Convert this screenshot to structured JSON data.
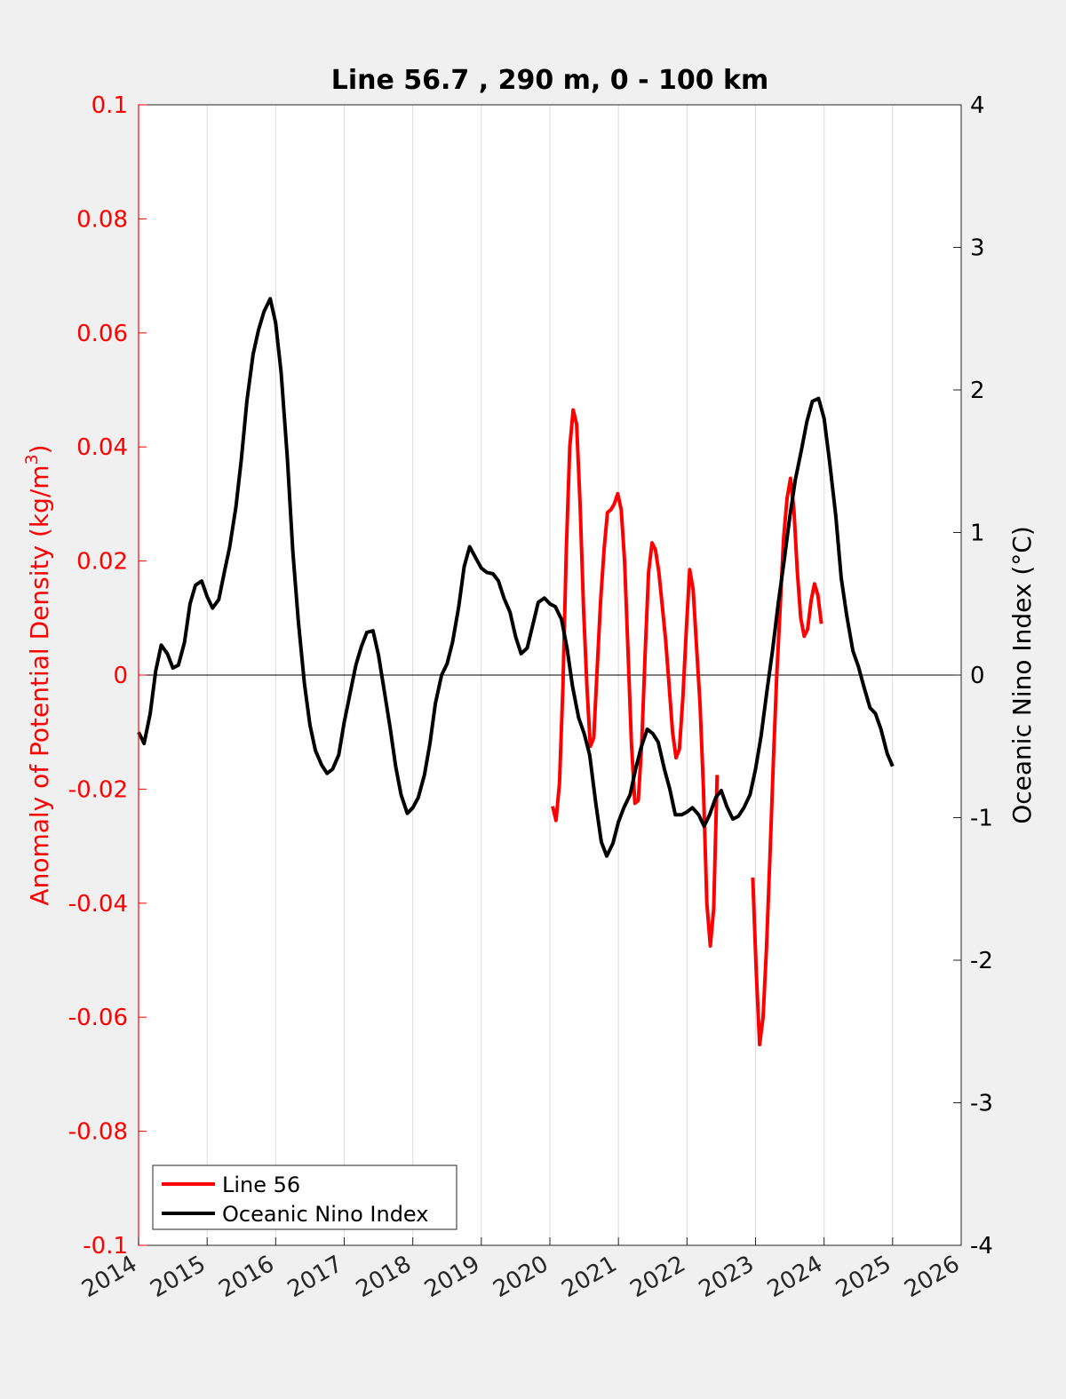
{
  "chart_data": {
    "type": "line",
    "title": "Line 56.7 , 290 m, 0 - 100 km",
    "xlim": [
      2014,
      2026
    ],
    "x_ticks": [
      "2014",
      "2015",
      "2016",
      "2017",
      "2018",
      "2019",
      "2020",
      "2021",
      "2022",
      "2023",
      "2024",
      "2025",
      "2026"
    ],
    "grid": "vertical",
    "left_axis": {
      "ylabel": "Anomaly of Potential Density (kg/m",
      "ylabel_sup": "3",
      "ylabel_suffix": ")",
      "ylim": [
        -0.1,
        0.1
      ],
      "ticks": [
        "-0.1",
        "-0.08",
        "-0.06",
        "-0.04",
        "-0.02",
        "0",
        "0.02",
        "0.04",
        "0.06",
        "0.08",
        "0.1"
      ],
      "color": "#ff0000"
    },
    "right_axis": {
      "ylabel": "Oceanic Nino Index (°C)",
      "ylim": [
        -4,
        4
      ],
      "ticks": [
        "-4",
        "-3",
        "-2",
        "-1",
        "0",
        "1",
        "2",
        "3",
        "4"
      ],
      "color": "#000000"
    },
    "legend": {
      "position": "bottom-left"
    },
    "series": [
      {
        "name": "Line 56",
        "axis": "left",
        "color": "#ff0000",
        "segments": [
          [
            [
              2020.04,
              -0.023
            ],
            [
              2020.09,
              -0.0255
            ],
            [
              2020.14,
              -0.019
            ],
            [
              2020.19,
              -0.002
            ],
            [
              2020.24,
              0.022
            ],
            [
              2020.29,
              0.04
            ],
            [
              2020.34,
              0.0465
            ],
            [
              2020.39,
              0.044
            ],
            [
              2020.44,
              0.03
            ],
            [
              2020.49,
              0.012
            ],
            [
              2020.54,
              -0.002
            ],
            [
              2020.59,
              -0.0125
            ],
            [
              2020.64,
              -0.011
            ],
            [
              2020.69,
              0.001
            ],
            [
              2020.74,
              0.013
            ],
            [
              2020.79,
              0.022
            ],
            [
              2020.84,
              0.0285
            ],
            [
              2020.89,
              0.029
            ],
            [
              2020.94,
              0.03
            ],
            [
              2020.99,
              0.0318
            ],
            [
              2021.04,
              0.029
            ],
            [
              2021.09,
              0.02
            ],
            [
              2021.14,
              0.004
            ],
            [
              2021.19,
              -0.012
            ],
            [
              2021.24,
              -0.0225
            ],
            [
              2021.29,
              -0.022
            ],
            [
              2021.34,
              -0.012
            ],
            [
              2021.39,
              0.004
            ],
            [
              2021.44,
              0.018
            ],
            [
              2021.49,
              0.0232
            ],
            [
              2021.54,
              0.022
            ],
            [
              2021.59,
              0.018
            ],
            [
              2021.64,
              0.012
            ],
            [
              2021.69,
              0.006
            ],
            [
              2021.74,
              -0.002
            ],
            [
              2021.79,
              -0.01
            ],
            [
              2021.84,
              -0.0145
            ],
            [
              2021.89,
              -0.013
            ],
            [
              2021.94,
              -0.004
            ],
            [
              2021.99,
              0.008
            ],
            [
              2022.04,
              0.0185
            ],
            [
              2022.09,
              0.015
            ],
            [
              2022.14,
              0.005
            ],
            [
              2022.19,
              -0.005
            ],
            [
              2022.24,
              -0.02
            ],
            [
              2022.29,
              -0.04
            ],
            [
              2022.34,
              -0.0475
            ],
            [
              2022.39,
              -0.041
            ],
            [
              2022.44,
              -0.0175
            ]
          ],
          [
            [
              2022.96,
              -0.0355
            ],
            [
              2023.01,
              -0.052
            ],
            [
              2023.06,
              -0.0648
            ],
            [
              2023.11,
              -0.06
            ],
            [
              2023.16,
              -0.048
            ],
            [
              2023.21,
              -0.032
            ],
            [
              2023.26,
              -0.015
            ],
            [
              2023.31,
              0.0
            ],
            [
              2023.36,
              0.012
            ],
            [
              2023.41,
              0.024
            ],
            [
              2023.46,
              0.031
            ],
            [
              2023.51,
              0.0345
            ],
            [
              2023.56,
              0.029
            ],
            [
              2023.61,
              0.018
            ],
            [
              2023.66,
              0.01
            ],
            [
              2023.71,
              0.0068
            ],
            [
              2023.76,
              0.008
            ],
            [
              2023.81,
              0.013
            ],
            [
              2023.86,
              0.016
            ],
            [
              2023.91,
              0.014
            ],
            [
              2023.96,
              0.009
            ]
          ]
        ]
      },
      {
        "name": "Oceanic Nino Index",
        "axis": "right",
        "color": "#000000",
        "points": [
          [
            2014.0,
            -0.4
          ],
          [
            2014.08,
            -0.48
          ],
          [
            2014.17,
            -0.27
          ],
          [
            2014.25,
            0.03
          ],
          [
            2014.33,
            0.21
          ],
          [
            2014.42,
            0.15
          ],
          [
            2014.5,
            0.05
          ],
          [
            2014.58,
            0.07
          ],
          [
            2014.67,
            0.23
          ],
          [
            2014.75,
            0.5
          ],
          [
            2014.83,
            0.63
          ],
          [
            2014.92,
            0.66
          ],
          [
            2015.0,
            0.55
          ],
          [
            2015.08,
            0.47
          ],
          [
            2015.17,
            0.53
          ],
          [
            2015.25,
            0.72
          ],
          [
            2015.33,
            0.9
          ],
          [
            2015.42,
            1.18
          ],
          [
            2015.5,
            1.52
          ],
          [
            2015.58,
            1.92
          ],
          [
            2015.67,
            2.25
          ],
          [
            2015.75,
            2.42
          ],
          [
            2015.83,
            2.55
          ],
          [
            2015.92,
            2.64
          ],
          [
            2016.0,
            2.47
          ],
          [
            2016.08,
            2.12
          ],
          [
            2016.17,
            1.52
          ],
          [
            2016.25,
            0.87
          ],
          [
            2016.33,
            0.38
          ],
          [
            2016.42,
            -0.06
          ],
          [
            2016.5,
            -0.35
          ],
          [
            2016.58,
            -0.53
          ],
          [
            2016.67,
            -0.63
          ],
          [
            2016.75,
            -0.69
          ],
          [
            2016.83,
            -0.66
          ],
          [
            2016.92,
            -0.56
          ],
          [
            2017.0,
            -0.33
          ],
          [
            2017.08,
            -0.14
          ],
          [
            2017.17,
            0.07
          ],
          [
            2017.25,
            0.2
          ],
          [
            2017.33,
            0.3
          ],
          [
            2017.42,
            0.31
          ],
          [
            2017.5,
            0.14
          ],
          [
            2017.58,
            -0.1
          ],
          [
            2017.67,
            -0.37
          ],
          [
            2017.75,
            -0.64
          ],
          [
            2017.83,
            -0.84
          ],
          [
            2017.92,
            -0.97
          ],
          [
            2018.0,
            -0.93
          ],
          [
            2018.08,
            -0.86
          ],
          [
            2018.17,
            -0.7
          ],
          [
            2018.25,
            -0.48
          ],
          [
            2018.33,
            -0.2
          ],
          [
            2018.42,
            0.0
          ],
          [
            2018.5,
            0.08
          ],
          [
            2018.58,
            0.23
          ],
          [
            2018.67,
            0.48
          ],
          [
            2018.75,
            0.76
          ],
          [
            2018.83,
            0.9
          ],
          [
            2018.92,
            0.82
          ],
          [
            2019.0,
            0.75
          ],
          [
            2019.08,
            0.72
          ],
          [
            2019.17,
            0.71
          ],
          [
            2019.25,
            0.66
          ],
          [
            2019.33,
            0.54
          ],
          [
            2019.42,
            0.44
          ],
          [
            2019.5,
            0.27
          ],
          [
            2019.58,
            0.15
          ],
          [
            2019.67,
            0.19
          ],
          [
            2019.75,
            0.35
          ],
          [
            2019.83,
            0.51
          ],
          [
            2019.92,
            0.54
          ],
          [
            2020.0,
            0.5
          ],
          [
            2020.08,
            0.48
          ],
          [
            2020.17,
            0.39
          ],
          [
            2020.25,
            0.19
          ],
          [
            2020.33,
            -0.08
          ],
          [
            2020.42,
            -0.3
          ],
          [
            2020.5,
            -0.41
          ],
          [
            2020.58,
            -0.56
          ],
          [
            2020.67,
            -0.9
          ],
          [
            2020.75,
            -1.17
          ],
          [
            2020.83,
            -1.27
          ],
          [
            2020.92,
            -1.18
          ],
          [
            2021.0,
            -1.03
          ],
          [
            2021.08,
            -0.93
          ],
          [
            2021.17,
            -0.84
          ],
          [
            2021.25,
            -0.66
          ],
          [
            2021.33,
            -0.51
          ],
          [
            2021.42,
            -0.38
          ],
          [
            2021.5,
            -0.41
          ],
          [
            2021.58,
            -0.47
          ],
          [
            2021.67,
            -0.66
          ],
          [
            2021.75,
            -0.8
          ],
          [
            2021.83,
            -0.98
          ],
          [
            2021.92,
            -0.98
          ],
          [
            2022.0,
            -0.96
          ],
          [
            2022.08,
            -0.93
          ],
          [
            2022.17,
            -0.98
          ],
          [
            2022.25,
            -1.06
          ],
          [
            2022.33,
            -0.98
          ],
          [
            2022.42,
            -0.86
          ],
          [
            2022.5,
            -0.81
          ],
          [
            2022.58,
            -0.92
          ],
          [
            2022.67,
            -1.01
          ],
          [
            2022.75,
            -0.99
          ],
          [
            2022.83,
            -0.93
          ],
          [
            2022.92,
            -0.84
          ],
          [
            2023.0,
            -0.66
          ],
          [
            2023.08,
            -0.43
          ],
          [
            2023.17,
            -0.1
          ],
          [
            2023.25,
            0.18
          ],
          [
            2023.33,
            0.5
          ],
          [
            2023.42,
            0.81
          ],
          [
            2023.5,
            1.11
          ],
          [
            2023.58,
            1.37
          ],
          [
            2023.67,
            1.58
          ],
          [
            2023.75,
            1.78
          ],
          [
            2023.83,
            1.92
          ],
          [
            2023.92,
            1.94
          ],
          [
            2024.0,
            1.8
          ],
          [
            2024.08,
            1.5
          ],
          [
            2024.17,
            1.12
          ],
          [
            2024.25,
            0.68
          ],
          [
            2024.33,
            0.42
          ],
          [
            2024.42,
            0.17
          ],
          [
            2024.5,
            0.06
          ],
          [
            2024.58,
            -0.08
          ],
          [
            2024.67,
            -0.23
          ],
          [
            2024.75,
            -0.27
          ],
          [
            2024.83,
            -0.38
          ],
          [
            2024.92,
            -0.55
          ],
          [
            2025.0,
            -0.64
          ]
        ]
      }
    ]
  }
}
